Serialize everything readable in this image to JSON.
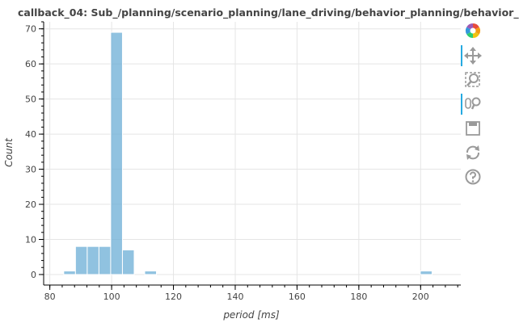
{
  "chart_data": {
    "type": "bar",
    "title": "callback_04: Sub_/planning/scenario_planning/lane_driving/behavior_planning/behavior_",
    "xlabel": "period [ms]",
    "ylabel": "Count",
    "xlim": [
      78,
      213
    ],
    "ylim": [
      -3,
      72
    ],
    "xticks": [
      80,
      100,
      120,
      140,
      160,
      180,
      200
    ],
    "yticks": [
      0,
      10,
      20,
      30,
      40,
      50,
      60,
      70
    ],
    "bar_color": "#6baed6",
    "grid": true,
    "bins": [
      {
        "x0": 84.5,
        "x1": 88.3,
        "count": 1
      },
      {
        "x0": 88.3,
        "x1": 92.1,
        "count": 8
      },
      {
        "x0": 92.1,
        "x1": 95.9,
        "count": 8
      },
      {
        "x0": 95.9,
        "x1": 99.7,
        "count": 8
      },
      {
        "x0": 99.7,
        "x1": 103.5,
        "count": 69
      },
      {
        "x0": 103.5,
        "x1": 107.3,
        "count": 7
      },
      {
        "x0": 110.7,
        "x1": 114.5,
        "count": 1
      },
      {
        "x0": 199.9,
        "x1": 203.7,
        "count": 1
      }
    ]
  },
  "toolbar": {
    "tools": [
      {
        "name": "bokeh-logo-icon",
        "active": false
      },
      {
        "name": "pan-icon",
        "active": true
      },
      {
        "name": "box-zoom-icon",
        "active": false
      },
      {
        "name": "wheel-zoom-icon",
        "active": true
      },
      {
        "name": "save-icon",
        "active": false
      },
      {
        "name": "reset-icon",
        "active": false
      },
      {
        "name": "help-icon",
        "active": false
      }
    ]
  }
}
